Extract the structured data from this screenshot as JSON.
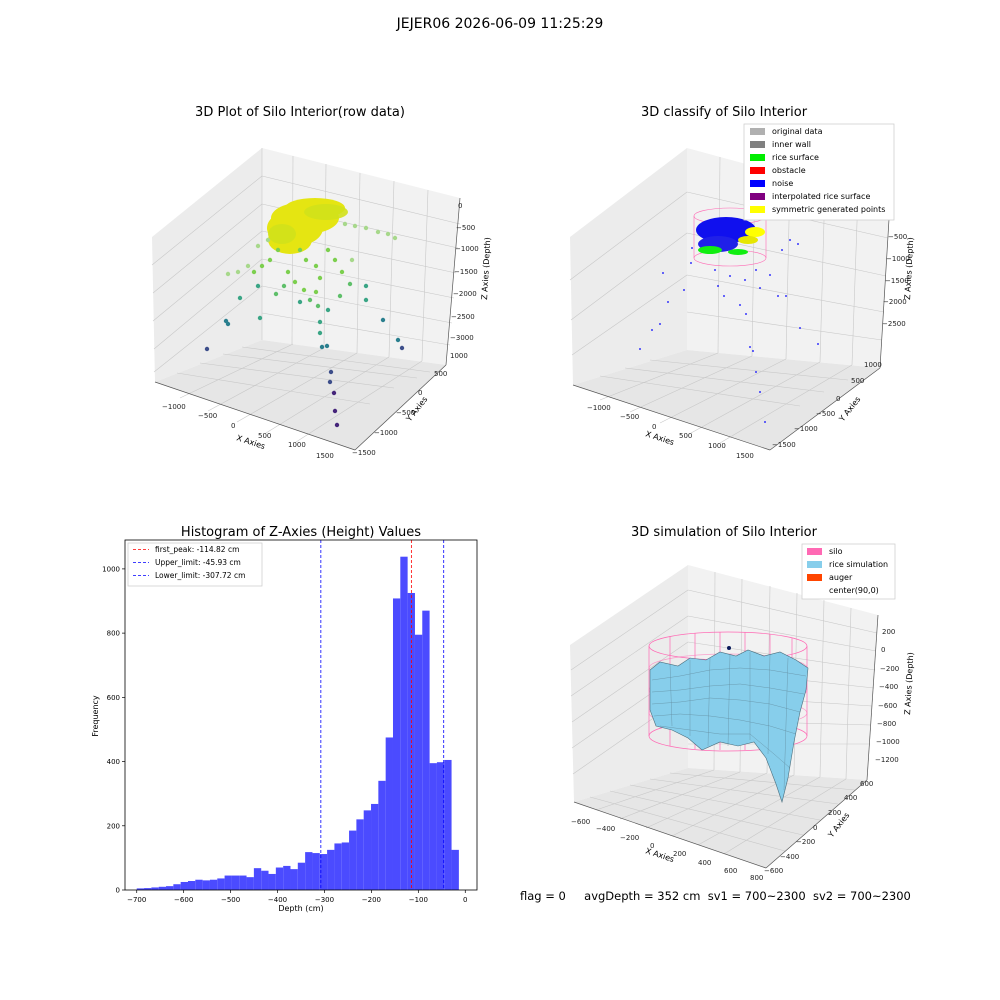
{
  "suptitle": "JEJER06 2026-06-09 11:25:29",
  "status_line": {
    "flag": "flag = 0",
    "avg_depth": "avgDepth = 352 cm",
    "sv1": "sv1 = 700~2300",
    "sv2": "sv2 = 700~2300"
  },
  "panels": {
    "raw": {
      "title": "3D Plot of Silo Interior(row data)",
      "xlabel": "X Axies",
      "ylabel": "Y Axies",
      "zlabel": "Z Axies (Depth)",
      "xticks": [
        "−1000",
        "−500",
        "0",
        "500",
        "1000",
        "1500"
      ],
      "yticks": [
        "1000",
        "500",
        "0",
        "−500",
        "−1000",
        "−1500"
      ],
      "zticks": [
        "0",
        "−500",
        "−1000",
        "−1500",
        "−2000",
        "−2500",
        "−3000"
      ]
    },
    "classify": {
      "title": "3D classify of Silo Interior",
      "xlabel": "X Axies",
      "ylabel": "Y Axies",
      "zlabel": "Z Axies (Depth)",
      "xticks": [
        "−1000",
        "−500",
        "0",
        "500",
        "1000",
        "1500"
      ],
      "yticks": [
        "1000",
        "500",
        "0",
        "−500",
        "−1000",
        "−1500"
      ],
      "zticks": [
        "−500",
        "−1000",
        "−1500",
        "−2000",
        "−2500"
      ],
      "legend": [
        {
          "label": "original data",
          "color": "#b0b0b0"
        },
        {
          "label": "inner wall",
          "color": "#808080"
        },
        {
          "label": "rice surface",
          "color": "#00ee00"
        },
        {
          "label": "obstacle",
          "color": "#ff0000"
        },
        {
          "label": "noise",
          "color": "#0000ff"
        },
        {
          "label": "interpolated rice surface",
          "color": "#800080"
        },
        {
          "label": "symmetric generated points",
          "color": "#ffff00"
        }
      ]
    },
    "simulation": {
      "title": "3D simulation of Silo Interior",
      "xlabel": "X Axies",
      "ylabel": "Y Axies",
      "zlabel": "Z Axies (Depth)",
      "xticks": [
        "−600",
        "−400",
        "−200",
        "0",
        "200",
        "400",
        "600",
        "800"
      ],
      "yticks": [
        "600",
        "400",
        "200",
        "0",
        "−200",
        "−400",
        "−600"
      ],
      "zticks": [
        "200",
        "0",
        "−200",
        "−400",
        "−600",
        "−800",
        "−1000",
        "−1200"
      ],
      "legend": [
        {
          "label": "silo",
          "color": "#ff69b4"
        },
        {
          "label": "rice simulation",
          "color": "#87ceeb"
        },
        {
          "label": "auger",
          "color": "#ff4500"
        },
        {
          "label": "center(90,0)",
          "color": ""
        }
      ]
    }
  },
  "chart_data": {
    "type": "bar",
    "title": "Histogram of Z-Axies (Height) Values",
    "xlabel": "Depth (cm)",
    "ylabel": "Frequency",
    "xlim": [
      -725,
      25
    ],
    "ylim": [
      0,
      1090
    ],
    "xticks": [
      -700,
      -600,
      -500,
      -400,
      -300,
      -200,
      -100,
      0
    ],
    "yticks": [
      0,
      200,
      400,
      600,
      800,
      1000
    ],
    "bar_color": "#4b4bff",
    "bin_edges": [
      -700,
      -684.4,
      -668.8,
      -653.2,
      -637.6,
      -622,
      -606.4,
      -590.8,
      -575.2,
      -559.6,
      -544,
      -528.4,
      -512.8,
      -497.2,
      -481.6,
      -466,
      -450.4,
      -434.8,
      -419.2,
      -403.6,
      -388,
      -372.4,
      -356.8,
      -341.2,
      -325.6,
      -310,
      -294.4,
      -278.8,
      -263.2,
      -247.6,
      -232,
      -216.4,
      -200.8,
      -185.2,
      -169.6,
      -154,
      -138.4,
      -122.8,
      -107.2,
      -91.6,
      -76,
      -60.4,
      -44.8,
      -29.2,
      -13.6,
      2
    ],
    "values": [
      5,
      6,
      8,
      10,
      12,
      18,
      25,
      28,
      32,
      30,
      32,
      36,
      45,
      45,
      45,
      40,
      68,
      60,
      50,
      70,
      75,
      65,
      85,
      118,
      115,
      112,
      125,
      145,
      148,
      185,
      220,
      248,
      268,
      340,
      475,
      908,
      1038,
      925,
      795,
      870,
      395,
      398,
      405,
      125,
      0
    ],
    "vlines": [
      {
        "label": "first_peak: -114.82 cm",
        "x": -114.82,
        "color": "#ff0000"
      },
      {
        "label": "Upper_limit: -45.93 cm",
        "x": -45.93,
        "color": "#0000ff"
      },
      {
        "label": "Lower_limit: -307.72 cm",
        "x": -307.72,
        "color": "#0000ff"
      }
    ],
    "legend_position": "upper left"
  }
}
